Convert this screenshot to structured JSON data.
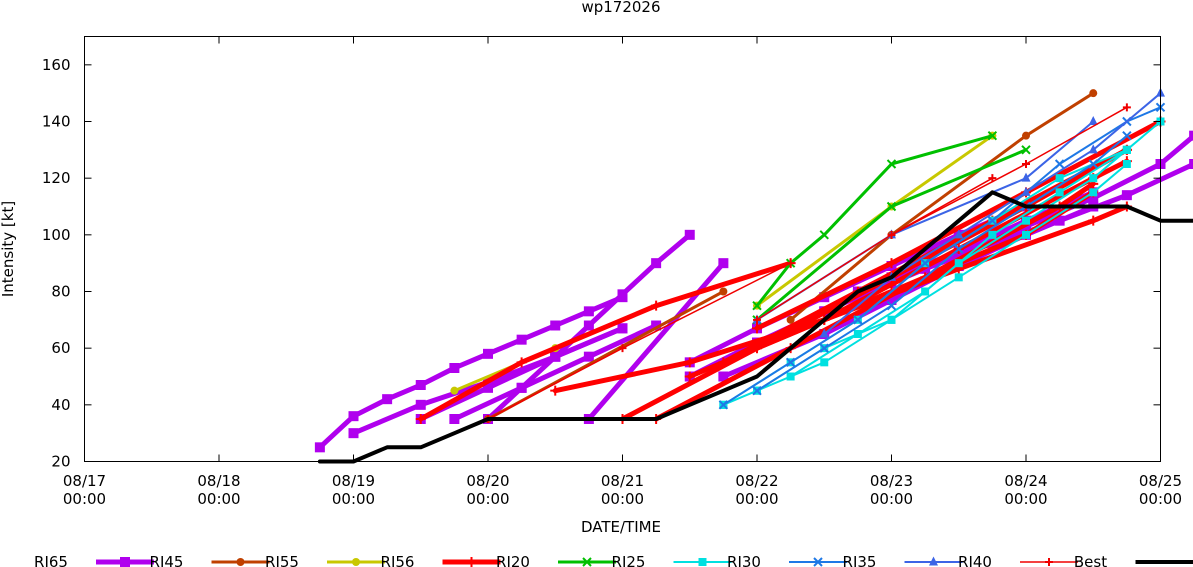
{
  "chart_data": {
    "type": "line",
    "title": "wp172026",
    "xlabel": "DATE/TIME",
    "ylabel": "Intensity [kt]",
    "x_unit": "date",
    "xlim": [
      "08/17 00:00",
      "08/25 00:00"
    ],
    "ylim": [
      20,
      170
    ],
    "x_ticks": [
      {
        "x": 0,
        "label": [
          "08/17",
          "00:00"
        ]
      },
      {
        "x": 1,
        "label": [
          "08/18",
          "00:00"
        ]
      },
      {
        "x": 2,
        "label": [
          "08/19",
          "00:00"
        ]
      },
      {
        "x": 3,
        "label": [
          "08/20",
          "00:00"
        ]
      },
      {
        "x": 4,
        "label": [
          "08/21",
          "00:00"
        ]
      },
      {
        "x": 5,
        "label": [
          "08/22",
          "00:00"
        ]
      },
      {
        "x": 6,
        "label": [
          "08/23",
          "00:00"
        ]
      },
      {
        "x": 7,
        "label": [
          "08/24",
          "00:00"
        ]
      },
      {
        "x": 8,
        "label": [
          "08/25",
          "00:00"
        ]
      }
    ],
    "y_ticks": [
      20,
      40,
      60,
      80,
      100,
      120,
      140,
      160
    ],
    "x_note": "x values are days after 08/17 00:00",
    "grid": false,
    "legend_position": "bottom",
    "series": [
      {
        "name": "RI65",
        "color": "#b000ee",
        "marker": "square",
        "width": 5,
        "marker_size": 10,
        "lines": [
          [
            [
              3.75,
              35
            ],
            [
              4.75,
              90
            ]
          ],
          [
            [
              3.0,
              35
            ],
            [
              3.25,
              46
            ],
            [
              3.5,
              57
            ],
            [
              3.75,
              68
            ],
            [
              4.0,
              79
            ],
            [
              4.25,
              90
            ],
            [
              4.5,
              100
            ]
          ],
          [
            [
              1.75,
              25
            ],
            [
              2.0,
              36
            ],
            [
              2.25,
              42
            ],
            [
              2.5,
              47
            ],
            [
              2.75,
              53
            ],
            [
              3.0,
              58
            ],
            [
              3.25,
              63
            ],
            [
              3.5,
              68
            ],
            [
              3.75,
              73
            ],
            [
              4.0,
              78
            ]
          ],
          [
            [
              2.0,
              30
            ],
            [
              2.5,
              40
            ],
            [
              3.0,
              48
            ],
            [
              3.5,
              57
            ],
            [
              4.0,
              67
            ]
          ],
          [
            [
              2.5,
              35
            ],
            [
              3.0,
              46
            ],
            [
              3.5,
              57
            ],
            [
              4.0,
              67
            ]
          ],
          [
            [
              2.75,
              35
            ],
            [
              3.25,
              46
            ],
            [
              3.75,
              57
            ],
            [
              4.25,
              68
            ]
          ],
          [
            [
              4.5,
              55
            ],
            [
              5.0,
              67
            ],
            [
              5.5,
              78
            ],
            [
              6.0,
              89
            ],
            [
              6.5,
              100
            ],
            [
              7.0,
              110
            ]
          ],
          [
            [
              5.0,
              62
            ],
            [
              5.5,
              73
            ],
            [
              6.0,
              83
            ],
            [
              6.5,
              93
            ],
            [
              7.0,
              103
            ],
            [
              7.5,
              113
            ],
            [
              8.0,
              125
            ],
            [
              8.25,
              135
            ]
          ],
          [
            [
              5.75,
              80
            ],
            [
              6.25,
              88
            ],
            [
              6.75,
              97
            ],
            [
              7.25,
              105
            ],
            [
              7.75,
              114
            ],
            [
              8.25,
              125
            ]
          ],
          [
            [
              4.5,
              50
            ],
            [
              5.0,
              62
            ],
            [
              5.5,
              73
            ],
            [
              6.0,
              85
            ],
            [
              6.5,
              94
            ],
            [
              7.0,
              105
            ],
            [
              7.5,
              115
            ]
          ],
          [
            [
              4.75,
              50
            ],
            [
              5.5,
              65
            ],
            [
              6.0,
              77
            ],
            [
              6.5,
              89
            ],
            [
              7.0,
              100
            ],
            [
              7.5,
              110
            ]
          ]
        ]
      },
      {
        "name": "RI45",
        "color": "#c04000",
        "marker": "circle",
        "width": 3,
        "marker_size": 8,
        "lines": [
          [
            [
              3.0,
              35
            ],
            [
              4.75,
              80
            ]
          ],
          [
            [
              5.25,
              70
            ],
            [
              6.0,
              100
            ],
            [
              7.0,
              135
            ],
            [
              7.5,
              150
            ]
          ]
        ]
      },
      {
        "name": "RI55",
        "color": "#c8c800",
        "marker": "circle",
        "width": 3,
        "marker_size": 8,
        "lines": [
          [
            [
              2.75,
              45
            ],
            [
              3.5,
              60
            ]
          ],
          [
            [
              5.0,
              75
            ],
            [
              6.0,
              110
            ],
            [
              6.75,
              135
            ]
          ]
        ]
      },
      {
        "name": "RI56",
        "color": "#ff0000",
        "marker": "plus",
        "width": 5,
        "marker_size": 10,
        "lines": [
          [
            [
              2.5,
              35
            ],
            [
              3.25,
              55
            ],
            [
              4.25,
              75
            ],
            [
              5.25,
              90
            ]
          ],
          [
            [
              4.0,
              35
            ],
            [
              5.0,
              60
            ],
            [
              6.0,
              80
            ],
            [
              7.0,
              100
            ],
            [
              7.5,
              115
            ]
          ],
          [
            [
              4.25,
              35
            ],
            [
              5.25,
              60
            ],
            [
              6.25,
              85
            ],
            [
              7.25,
              110
            ],
            [
              7.5,
              118
            ]
          ],
          [
            [
              3.5,
              45
            ],
            [
              4.5,
              55
            ],
            [
              5.5,
              70
            ],
            [
              6.5,
              88
            ],
            [
              7.5,
              105
            ],
            [
              7.75,
              110
            ]
          ],
          [
            [
              4.5,
              50
            ],
            [
              5.5,
              70
            ],
            [
              6.5,
              95
            ],
            [
              7.5,
              120
            ],
            [
              7.75,
              126
            ]
          ],
          [
            [
              4.75,
              55
            ],
            [
              5.75,
              80
            ],
            [
              6.75,
              105
            ],
            [
              7.75,
              130
            ]
          ],
          [
            [
              5.0,
              60
            ],
            [
              6.0,
              85
            ],
            [
              7.0,
              110
            ],
            [
              7.75,
              130
            ]
          ],
          [
            [
              5.0,
              67
            ],
            [
              6.0,
              90
            ],
            [
              7.0,
              115
            ],
            [
              8.0,
              140
            ]
          ]
        ]
      },
      {
        "name": "RI20",
        "color": "#00c000",
        "marker": "x",
        "width": 3,
        "marker_size": 8,
        "lines": [
          [
            [
              5.0,
              75
            ],
            [
              5.25,
              90
            ],
            [
              5.5,
              100
            ],
            [
              6.0,
              125
            ],
            [
              6.75,
              135
            ]
          ],
          [
            [
              5.0,
              70
            ],
            [
              6.0,
              110
            ],
            [
              7.0,
              130
            ]
          ]
        ]
      },
      {
        "name": "RI25",
        "color": "#00e0e0",
        "marker": "square",
        "width": 2,
        "marker_size": 8,
        "lines": [
          [
            [
              4.75,
              40
            ],
            [
              5.25,
              55
            ],
            [
              5.75,
              70
            ],
            [
              6.25,
              90
            ],
            [
              6.75,
              105
            ],
            [
              7.25,
              120
            ],
            [
              7.75,
              130
            ],
            [
              8.0,
              140
            ]
          ],
          [
            [
              4.75,
              40
            ],
            [
              5.0,
              45
            ],
            [
              5.5,
              55
            ],
            [
              6.0,
              70
            ],
            [
              6.5,
              85
            ],
            [
              7.0,
              100
            ],
            [
              7.5,
              115
            ],
            [
              7.75,
              125
            ]
          ],
          [
            [
              5.0,
              45
            ],
            [
              5.5,
              60
            ],
            [
              6.0,
              70
            ],
            [
              6.5,
              90
            ],
            [
              7.0,
              105
            ],
            [
              7.5,
              120
            ],
            [
              7.75,
              130
            ]
          ],
          [
            [
              5.25,
              50
            ],
            [
              5.75,
              65
            ],
            [
              6.25,
              80
            ],
            [
              6.75,
              100
            ],
            [
              7.25,
              115
            ],
            [
              7.75,
              130
            ]
          ]
        ]
      },
      {
        "name": "RI30",
        "color": "#1e78e6",
        "marker": "x",
        "width": 2,
        "marker_size": 8,
        "lines": [
          [
            [
              4.75,
              40
            ],
            [
              5.25,
              55
            ],
            [
              5.75,
              70
            ],
            [
              6.25,
              90
            ],
            [
              6.75,
              105
            ],
            [
              7.25,
              125
            ],
            [
              7.75,
              140
            ],
            [
              8.0,
              145
            ]
          ],
          [
            [
              5.0,
              45
            ],
            [
              5.5,
              60
            ],
            [
              6.0,
              75
            ],
            [
              6.5,
              95
            ],
            [
              7.0,
              110
            ],
            [
              7.5,
              125
            ],
            [
              7.75,
              135
            ]
          ]
        ]
      },
      {
        "name": "RI35",
        "color": "#3c64e6",
        "marker": "triangle",
        "width": 2,
        "marker_size": 9,
        "lines": [
          [
            [
              5.5,
              65
            ],
            [
              6.0,
              85
            ],
            [
              6.5,
              100
            ],
            [
              7.0,
              115
            ],
            [
              7.5,
              130
            ],
            [
              8.0,
              150
            ]
          ],
          [
            [
              5.0,
              70
            ],
            [
              6.0,
              100
            ],
            [
              7.0,
              120
            ],
            [
              7.5,
              140
            ]
          ]
        ]
      },
      {
        "name": "RI40",
        "color": "#f00000",
        "marker": "plus",
        "width": 1.5,
        "marker_size": 8,
        "lines": [
          [
            [
              3.0,
              35
            ],
            [
              4.0,
              60
            ],
            [
              5.25,
              90
            ]
          ],
          [
            [
              5.0,
              70
            ],
            [
              6.0,
              100
            ],
            [
              6.75,
              120
            ]
          ],
          [
            [
              6.0,
              100
            ],
            [
              7.0,
              125
            ],
            [
              7.75,
              145
            ]
          ]
        ]
      },
      {
        "name": "Best",
        "color": "#000000",
        "marker": "none",
        "width": 4,
        "marker_size": 0,
        "lines": [
          [
            [
              1.75,
              20
            ],
            [
              2.0,
              20
            ],
            [
              2.25,
              25
            ],
            [
              2.5,
              25
            ],
            [
              2.75,
              30
            ],
            [
              3.0,
              35
            ],
            [
              3.25,
              35
            ],
            [
              3.5,
              35
            ],
            [
              3.75,
              35
            ],
            [
              4.0,
              35
            ],
            [
              4.25,
              35
            ],
            [
              4.5,
              40
            ],
            [
              4.75,
              45
            ],
            [
              5.0,
              50
            ],
            [
              5.25,
              60
            ],
            [
              5.5,
              70
            ],
            [
              5.75,
              80
            ],
            [
              6.0,
              85
            ],
            [
              6.25,
              95
            ],
            [
              6.5,
              105
            ],
            [
              6.75,
              115
            ],
            [
              7.0,
              110
            ],
            [
              7.25,
              110
            ],
            [
              7.5,
              110
            ],
            [
              7.75,
              110
            ],
            [
              8.0,
              105
            ],
            [
              8.25,
              105
            ]
          ]
        ]
      }
    ]
  }
}
